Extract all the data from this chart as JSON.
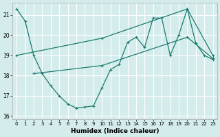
{
  "xlabel": "Humidex (Indice chaleur)",
  "bg_color": "#d4ecec",
  "grid_color": "#ffffff",
  "line_color": "#1a7a6e",
  "xlim": [
    -0.5,
    23.5
  ],
  "ylim": [
    15.85,
    21.6
  ],
  "yticks": [
    16,
    17,
    18,
    19,
    20,
    21
  ],
  "xticks": [
    0,
    1,
    2,
    3,
    4,
    5,
    6,
    7,
    8,
    9,
    10,
    11,
    12,
    13,
    14,
    15,
    16,
    17,
    18,
    19,
    20,
    21,
    22,
    23
  ],
  "series1_x": [
    0,
    1,
    2,
    3,
    4,
    5,
    6,
    7,
    8,
    9,
    10,
    11,
    12,
    13,
    14,
    15,
    16,
    17,
    18,
    19,
    20,
    21,
    22,
    23
  ],
  "series1_y": [
    21.3,
    20.7,
    19.0,
    18.1,
    17.5,
    17.0,
    16.6,
    16.4,
    16.45,
    16.5,
    17.4,
    18.3,
    18.55,
    19.65,
    19.9,
    19.4,
    20.85,
    20.85,
    19.0,
    20.0,
    21.3,
    19.6,
    19.0,
    18.8
  ],
  "series2_x": [
    0,
    10,
    20,
    23
  ],
  "series2_y": [
    19.0,
    19.85,
    21.3,
    19.0
  ],
  "series3_x": [
    2,
    10,
    20,
    23
  ],
  "series3_y": [
    18.1,
    18.5,
    19.9,
    18.85
  ]
}
